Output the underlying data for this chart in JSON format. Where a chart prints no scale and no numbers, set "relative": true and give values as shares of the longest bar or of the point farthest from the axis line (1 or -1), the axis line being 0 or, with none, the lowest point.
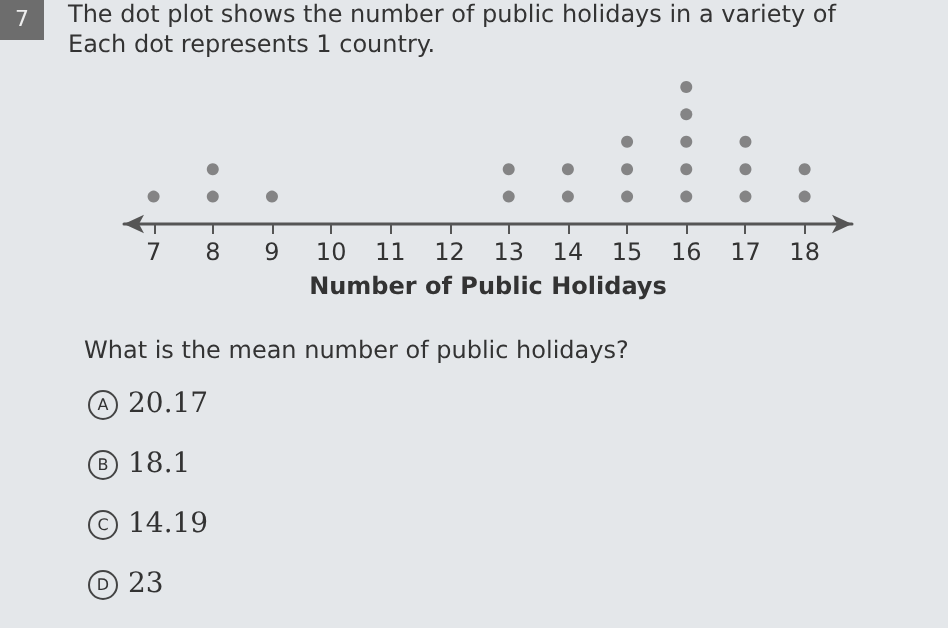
{
  "chart_data": {
    "type": "scatter",
    "title": "The dot plot shows the number of public holidays in a variety of",
    "subtitle": "Each dot represents 1 country.",
    "xlabel": "Number of Public Holidays",
    "x": [
      7,
      8,
      8,
      9,
      13,
      13,
      14,
      14,
      15,
      15,
      15,
      16,
      16,
      16,
      16,
      16,
      17,
      17,
      17,
      18,
      18
    ],
    "values": [
      0.2,
      0.2,
      0.4,
      0.2,
      0.2,
      0.4,
      0.2,
      0.4,
      0.2,
      0.4,
      0.6,
      0.2,
      0.4,
      0.6,
      0.8,
      1,
      0.2,
      0.4,
      0.6,
      0.2,
      0.4
    ],
    "relative": true,
    "color": "#6b6b6b",
    "marker": "circle",
    "xlim": [
      6.5,
      18.8
    ],
    "xticks": [
      7,
      8,
      9,
      10,
      11,
      12,
      13,
      14,
      15,
      16,
      17,
      18
    ],
    "tick_labels": "x",
    "grid": false,
    "annotations": [
      "7",
      "What is the mean number of public holidays?",
      "A",
      "20.17",
      "B",
      "18.1",
      "C",
      "14.19",
      "D",
      "23"
    ]
  }
}
